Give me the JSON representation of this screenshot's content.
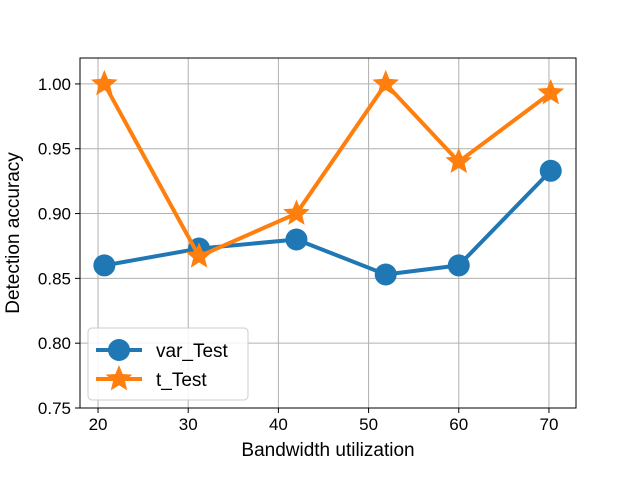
{
  "chart_data": {
    "type": "line",
    "xlabel": "Bandwidth utilization",
    "ylabel": "Detection accuracy",
    "xlim": [
      18,
      73
    ],
    "ylim": [
      0.75,
      1.02
    ],
    "xticks": [
      20,
      30,
      40,
      50,
      60,
      70
    ],
    "yticks": [
      0.75,
      0.8,
      0.85,
      0.9,
      0.95,
      1.0
    ],
    "xtick_labels": [
      "20",
      "30",
      "40",
      "50",
      "60",
      "70"
    ],
    "ytick_labels": [
      "0.75",
      "0.80",
      "0.85",
      "0.90",
      "0.95",
      "1.00"
    ],
    "grid": true,
    "legend_position": "lower-left",
    "series": [
      {
        "name": "var_Test",
        "color": "#1f77b4",
        "marker": "circle",
        "x": [
          20.7,
          31.2,
          42.0,
          51.9,
          60.0,
          70.2
        ],
        "y": [
          0.86,
          0.873,
          0.88,
          0.853,
          0.86,
          0.933
        ]
      },
      {
        "name": "t_Test",
        "color": "#ff7f0e",
        "marker": "star",
        "x": [
          20.7,
          31.2,
          42.0,
          51.9,
          60.0,
          70.2
        ],
        "y": [
          1.0,
          0.867,
          0.9,
          1.0,
          0.94,
          0.993
        ]
      }
    ]
  }
}
